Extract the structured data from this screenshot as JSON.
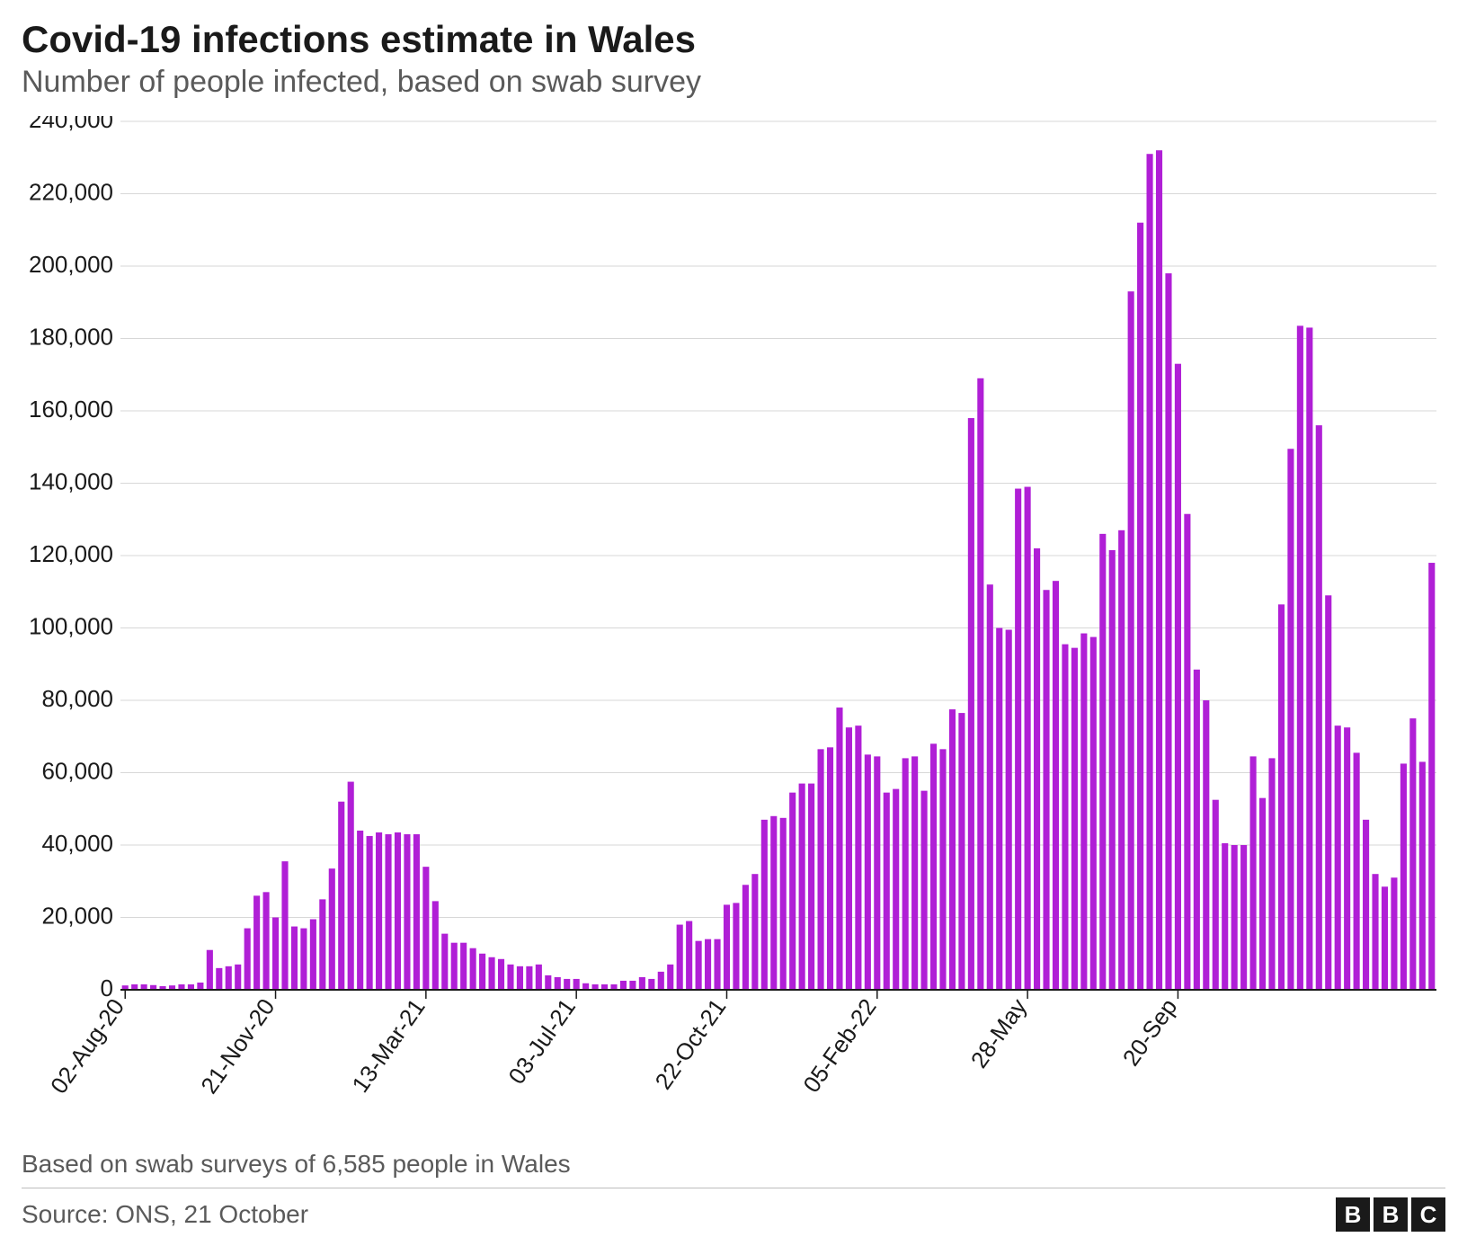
{
  "title": "Covid-19 infections estimate in Wales",
  "subtitle": "Number of people infected, based on swab survey",
  "footnote": "Based on swab surveys of 6,585 people in Wales",
  "source": "Source: ONS, 21 October",
  "logo_letters": [
    "B",
    "B",
    "C"
  ],
  "chart": {
    "type": "bar",
    "background_color": "#ffffff",
    "grid_color": "#d7d7d7",
    "axis_color": "#1a1a1a",
    "bar_color": "#b01fd6",
    "ylim": [
      0,
      240000
    ],
    "ytick_step": 20000,
    "ytick_labels": [
      "0",
      "20,000",
      "40,000",
      "60,000",
      "80,000",
      "100,000",
      "120,000",
      "140,000",
      "160,000",
      "180,000",
      "200,000",
      "220,000",
      "240,000"
    ],
    "ytick_fontsize": 26,
    "xtick_fontsize": 26,
    "title_fontsize": 42,
    "subtitle_fontsize": 34,
    "bar_width_ratio": 0.68,
    "xtick_positions": [
      0,
      16,
      32,
      48,
      64,
      80,
      96,
      112
    ],
    "xtick_labels": [
      "02-Aug-20",
      "21-Nov-20",
      "13-Mar-21",
      "03-Jul-21",
      "22-Oct-21",
      "05-Feb-22",
      "28-May",
      "20-Sep"
    ],
    "xtick_rotation": -55,
    "values": [
      1200,
      1500,
      1500,
      1300,
      1000,
      1200,
      1500,
      1500,
      2000,
      11000,
      6000,
      6500,
      7000,
      17000,
      26000,
      27000,
      20000,
      35500,
      17500,
      17000,
      19500,
      25000,
      33500,
      52000,
      57500,
      44000,
      42500,
      43500,
      43000,
      43500,
      43000,
      43000,
      34000,
      24500,
      15500,
      13000,
      13000,
      11500,
      10000,
      9000,
      8500,
      7000,
      6500,
      6500,
      7000,
      4000,
      3500,
      3000,
      3000,
      1800,
      1500,
      1500,
      1500,
      2500,
      2500,
      3500,
      3000,
      5000,
      7000,
      18000,
      19000,
      13500,
      14000,
      14000,
      23500,
      24000,
      29000,
      32000,
      47000,
      48000,
      47500,
      54500,
      57000,
      57000,
      66500,
      67000,
      78000,
      72500,
      73000,
      65000,
      64500,
      54500,
      55500,
      64000,
      64500,
      55000,
      68000,
      66500,
      77500,
      76500,
      158000,
      169000,
      112000,
      100000,
      99500,
      138500,
      139000,
      122000,
      110500,
      113000,
      95500,
      94500,
      98500,
      97500,
      126000,
      121500,
      127000,
      193000,
      212000,
      231000,
      232000,
      198000,
      173000,
      131500,
      88500,
      80000,
      52500,
      40500,
      40000,
      40000,
      64500,
      53000,
      64000,
      106500,
      149500,
      183500,
      183000,
      156000,
      109000,
      73000,
      72500,
      65500,
      47000,
      32000,
      28500,
      31000,
      62500,
      75000,
      63000,
      118000
    ]
  }
}
